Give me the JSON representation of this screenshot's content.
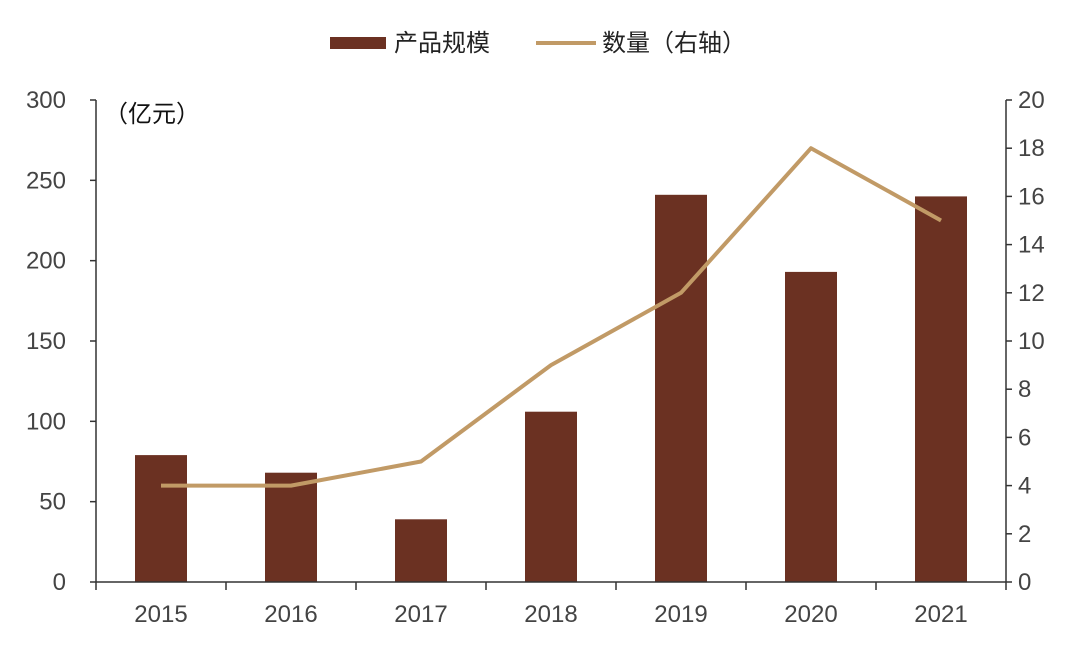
{
  "chart_data": {
    "type": "bar",
    "unit_label": "（亿元）",
    "categories": [
      "2015",
      "2016",
      "2017",
      "2018",
      "2019",
      "2020",
      "2021"
    ],
    "series": [
      {
        "name": "产品规模",
        "type": "bar",
        "axis": "left",
        "color": "#6b3122",
        "values": [
          79,
          68,
          39,
          106,
          241,
          193,
          240
        ]
      },
      {
        "name": "数量（右轴）",
        "type": "line",
        "axis": "right",
        "color": "#c19a66",
        "values": [
          4,
          4,
          5,
          9,
          12,
          18,
          15
        ]
      }
    ],
    "y_left": {
      "min": 0,
      "max": 300,
      "ticks": [
        "0",
        "50",
        "100",
        "150",
        "200",
        "250",
        "300"
      ]
    },
    "y_right": {
      "min": 0,
      "max": 20,
      "ticks": [
        "0",
        "2",
        "4",
        "6",
        "8",
        "10",
        "12",
        "14",
        "16",
        "18",
        "20"
      ]
    },
    "grid": false,
    "legend_position": "top-center"
  }
}
